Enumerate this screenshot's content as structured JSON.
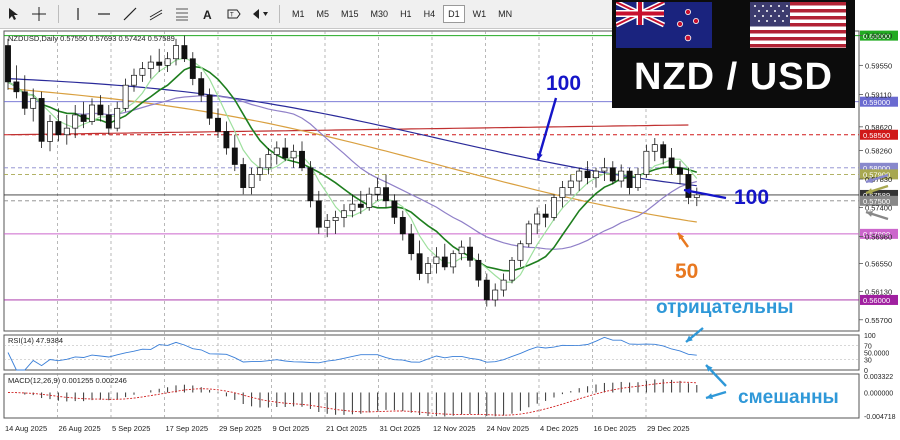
{
  "toolbar": {
    "tools": [
      "cursor-icon",
      "crosshair-icon",
      "vertical-line-icon",
      "horizontal-line-icon",
      "trend-line-icon",
      "channel-icon",
      "fibonacci-icon",
      "text-icon",
      "label-icon",
      "arrow-shapes-icon"
    ],
    "timeframes": [
      "M1",
      "M5",
      "M15",
      "M30",
      "H1",
      "H4",
      "D1",
      "W1",
      "MN"
    ],
    "active_timeframe": "D1"
  },
  "overlay": {
    "title": "NZD / USD",
    "flags": [
      "new-zealand-flag",
      "usa-flag"
    ],
    "bg": "#0c0c0c"
  },
  "chart_data": {
    "type": "candlestick",
    "symbol_header": "NZDUSD,Daily  0.57550 0.57693 0.57424 0.57589",
    "ylim": [
      0.5553,
      0.6007
    ],
    "price_ticks": [
      "0.60000",
      "0.59550",
      "0.59110",
      "0.58620",
      "0.58260",
      "0.57830",
      "0.57400",
      "0.56960",
      "0.56550",
      "0.56130",
      "0.55700"
    ],
    "date_labels": [
      "14 Aug 2025",
      "26 Aug 2025",
      "5 Sep 2025",
      "17 Sep 2025",
      "29 Sep 2025",
      "9 Oct 2025",
      "21 Oct 2025",
      "31 Oct 2025",
      "12 Nov 2025",
      "24 Nov 2025",
      "4 Dec 2025",
      "16 Dec 2025",
      "29 Dec 2025"
    ],
    "levels": [
      {
        "label": "0.60000",
        "value": 0.6,
        "color": "#22aa22",
        "style": "solid"
      },
      {
        "label": "0.59000",
        "value": 0.59,
        "color": "#6a6ad0",
        "style": "solid"
      },
      {
        "label": "0.58500",
        "value": 0.585,
        "color": "#d01818",
        "style": "dashed"
      },
      {
        "label": "0.58000",
        "value": 0.58,
        "color": "#8888cc",
        "style": "dashed"
      },
      {
        "label": "0.57900",
        "value": 0.579,
        "color": "#a8a850",
        "style": "dashed"
      },
      {
        "label": "0.57589",
        "value": 0.57589,
        "color": "#333333",
        "style": "solid"
      },
      {
        "label": "0.57500",
        "value": 0.575,
        "color": "#888888",
        "style": "dashed"
      },
      {
        "label": "0.57000",
        "value": 0.57,
        "color": "#cc66cc",
        "style": "solid"
      },
      {
        "label": "0.56000",
        "value": 0.56,
        "color": "#a020a0",
        "style": "solid"
      }
    ],
    "ohlc": [
      [
        0.5985,
        0.5995,
        0.5918,
        0.593
      ],
      [
        0.593,
        0.5955,
        0.5905,
        0.5915
      ],
      [
        0.5915,
        0.594,
        0.588,
        0.589
      ],
      [
        0.589,
        0.592,
        0.587,
        0.5905
      ],
      [
        0.5905,
        0.5915,
        0.583,
        0.584
      ],
      [
        0.584,
        0.588,
        0.5825,
        0.587
      ],
      [
        0.587,
        0.589,
        0.584,
        0.585
      ],
      [
        0.585,
        0.588,
        0.5835,
        0.586
      ],
      [
        0.586,
        0.5895,
        0.5845,
        0.588
      ],
      [
        0.588,
        0.59,
        0.586,
        0.587
      ],
      [
        0.587,
        0.5905,
        0.5865,
        0.5895
      ],
      [
        0.5895,
        0.591,
        0.587,
        0.588
      ],
      [
        0.588,
        0.5895,
        0.585,
        0.586
      ],
      [
        0.586,
        0.59,
        0.5855,
        0.589
      ],
      [
        0.589,
        0.5935,
        0.5885,
        0.5925
      ],
      [
        0.5925,
        0.595,
        0.5915,
        0.594
      ],
      [
        0.594,
        0.596,
        0.593,
        0.595
      ],
      [
        0.595,
        0.597,
        0.5935,
        0.596
      ],
      [
        0.596,
        0.598,
        0.5945,
        0.5955
      ],
      [
        0.5955,
        0.5975,
        0.5945,
        0.5965
      ],
      [
        0.5965,
        0.5995,
        0.5955,
        0.5985
      ],
      [
        0.5985,
        0.6,
        0.596,
        0.5965
      ],
      [
        0.5965,
        0.5975,
        0.5925,
        0.5935
      ],
      [
        0.5935,
        0.5945,
        0.59,
        0.591
      ],
      [
        0.591,
        0.592,
        0.5865,
        0.5875
      ],
      [
        0.5875,
        0.589,
        0.5845,
        0.5855
      ],
      [
        0.5855,
        0.587,
        0.582,
        0.583
      ],
      [
        0.583,
        0.585,
        0.5795,
        0.5805
      ],
      [
        0.5805,
        0.5815,
        0.576,
        0.577
      ],
      [
        0.577,
        0.58,
        0.576,
        0.579
      ],
      [
        0.579,
        0.5815,
        0.578,
        0.58
      ],
      [
        0.58,
        0.583,
        0.579,
        0.582
      ],
      [
        0.582,
        0.584,
        0.5805,
        0.583
      ],
      [
        0.583,
        0.5845,
        0.581,
        0.5815
      ],
      [
        0.5815,
        0.5835,
        0.58,
        0.5825
      ],
      [
        0.5825,
        0.584,
        0.5795,
        0.58
      ],
      [
        0.58,
        0.581,
        0.574,
        0.575
      ],
      [
        0.575,
        0.5765,
        0.57,
        0.571
      ],
      [
        0.571,
        0.573,
        0.5695,
        0.572
      ],
      [
        0.572,
        0.5735,
        0.57,
        0.5725
      ],
      [
        0.5725,
        0.5745,
        0.571,
        0.5735
      ],
      [
        0.5735,
        0.576,
        0.5725,
        0.5745
      ],
      [
        0.5745,
        0.5765,
        0.573,
        0.574
      ],
      [
        0.574,
        0.577,
        0.5735,
        0.576
      ],
      [
        0.576,
        0.5785,
        0.575,
        0.577
      ],
      [
        0.577,
        0.579,
        0.574,
        0.575
      ],
      [
        0.575,
        0.576,
        0.5715,
        0.5725
      ],
      [
        0.5725,
        0.5735,
        0.569,
        0.57
      ],
      [
        0.57,
        0.5715,
        0.566,
        0.567
      ],
      [
        0.567,
        0.569,
        0.563,
        0.564
      ],
      [
        0.564,
        0.5665,
        0.5625,
        0.5655
      ],
      [
        0.5655,
        0.568,
        0.564,
        0.5665
      ],
      [
        0.5665,
        0.5685,
        0.5645,
        0.565
      ],
      [
        0.565,
        0.5675,
        0.564,
        0.567
      ],
      [
        0.567,
        0.569,
        0.566,
        0.568
      ],
      [
        0.568,
        0.5695,
        0.565,
        0.566
      ],
      [
        0.566,
        0.567,
        0.562,
        0.563
      ],
      [
        0.563,
        0.564,
        0.559,
        0.56
      ],
      [
        0.56,
        0.5625,
        0.559,
        0.5615
      ],
      [
        0.5615,
        0.564,
        0.5605,
        0.563
      ],
      [
        0.563,
        0.5665,
        0.5625,
        0.566
      ],
      [
        0.566,
        0.569,
        0.565,
        0.5685
      ],
      [
        0.5685,
        0.572,
        0.568,
        0.5715
      ],
      [
        0.5715,
        0.574,
        0.57,
        0.573
      ],
      [
        0.573,
        0.5745,
        0.571,
        0.5725
      ],
      [
        0.5725,
        0.576,
        0.572,
        0.5755
      ],
      [
        0.5755,
        0.578,
        0.574,
        0.577
      ],
      [
        0.577,
        0.579,
        0.576,
        0.578
      ],
      [
        0.578,
        0.58,
        0.5765,
        0.5795
      ],
      [
        0.5795,
        0.581,
        0.5775,
        0.5785
      ],
      [
        0.5785,
        0.58,
        0.577,
        0.5795
      ],
      [
        0.5795,
        0.5815,
        0.578,
        0.58
      ],
      [
        0.58,
        0.581,
        0.5775,
        0.578
      ],
      [
        0.578,
        0.5805,
        0.577,
        0.5795
      ],
      [
        0.5795,
        0.58,
        0.576,
        0.577
      ],
      [
        0.577,
        0.58,
        0.5765,
        0.579
      ],
      [
        0.579,
        0.5835,
        0.5785,
        0.5825
      ],
      [
        0.5825,
        0.5845,
        0.581,
        0.5835
      ],
      [
        0.5835,
        0.584,
        0.5805,
        0.5815
      ],
      [
        0.5815,
        0.583,
        0.579,
        0.58
      ],
      [
        0.58,
        0.581,
        0.5775,
        0.579
      ],
      [
        0.579,
        0.58,
        0.5745,
        0.5755
      ],
      [
        0.5755,
        0.577,
        0.5742,
        0.5759
      ]
    ],
    "ma_series": [
      {
        "label": "100",
        "color": "#2a2a9a",
        "start": 0.5935,
        "end": 0.579
      },
      {
        "label": "50",
        "color": "#d9a040",
        "start": 0.592,
        "end": 0.5735
      },
      {
        "color": "#9080c8",
        "period": 21
      },
      {
        "color": "#1e7e1e",
        "period": 9
      },
      {
        "color": "#9ee09e",
        "period": 5
      }
    ],
    "resistance_ma": {
      "color": "#c03030",
      "start": 0.585,
      "end": 0.5865
    },
    "rsi": {
      "label": "RSI(14) 47.9384",
      "ticks": [
        "100",
        "70",
        "50.0000",
        "30",
        "0"
      ],
      "value": 47.9384,
      "color": "#3a7fd8"
    },
    "macd": {
      "label": "MACD(12,26,9) 0.001255 0.002246",
      "ticks": [
        "0.003322",
        "0.000000",
        "-0.004718"
      ],
      "value": 0.001255,
      "signal": 0.002246
    },
    "annotations": [
      {
        "text": "100",
        "color": "#1515c8",
        "arrow": "down"
      },
      {
        "text": "100",
        "color": "#1515c8",
        "arrow": "left"
      },
      {
        "text": "50",
        "color": "#e87820",
        "arrow": "up-left"
      },
      {
        "text": "отрицательны",
        "color": "#2f98d8",
        "arrow": "left"
      },
      {
        "text": "смешанны",
        "color": "#2f98d8",
        "arrow": "left"
      }
    ]
  }
}
